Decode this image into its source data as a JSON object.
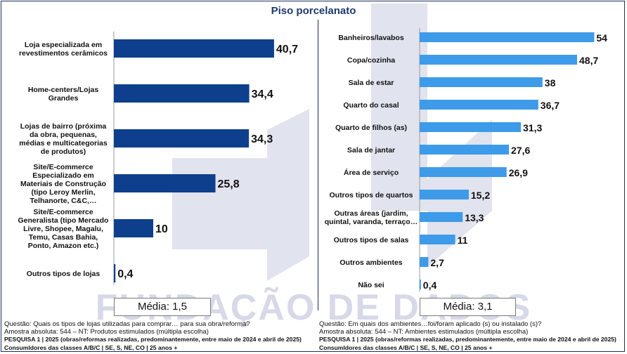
{
  "title": "Piso porcelanato",
  "watermark": "FUNDAÇÃO DE DADOS",
  "colors": {
    "left_bar": "#0d3f8c",
    "right_bar": "#3d9be9",
    "frame": "#1f2f5c",
    "title": "#1f3a6e",
    "watermark": "#d7d9e8"
  },
  "chart_data": [
    {
      "type": "bar",
      "orientation": "horizontal",
      "categories": [
        "Loja especializada em revestimentos cerâmicos",
        "Home-centers/Lojas Grandes",
        "Lojas de bairro (próxima da obra, pequenas, médias e multicategorias de produtos)",
        "Site/E-commerce Especializado em Materiais de Construção (tipo Leroy Merlin, Telhanorte, C&C,…",
        "Site/E-commerce Generalista (tipo Mercado Livre, Shopee, Magalu, Temu, Casas Bahia, Ponto, Amazon etc.)",
        "Outros tipos de lojas"
      ],
      "label_lines": [
        [
          "Loja especializada em",
          "revestimentos cerâmicos"
        ],
        [
          "Home-centers/Lojas",
          "Grandes"
        ],
        [
          "Lojas de bairro (próxima",
          "da obra, pequenas,",
          "médias e multicategorias",
          "de produtos)"
        ],
        [
          "Site/E-commerce",
          "Especializado em",
          "Materiais de Construção",
          "(tipo Leroy Merlin,",
          "Telhanorte, C&C,…"
        ],
        [
          "Site/E-commerce",
          "Generalista (tipo Mercado",
          "Livre, Shopee, Magalu,",
          "Temu, Casas Bahia,",
          "Ponto, Amazon etc.)"
        ],
        [
          "Outros tipos de lojas"
        ]
      ],
      "values": [
        40.7,
        34.4,
        34.3,
        25.8,
        10,
        0.4
      ],
      "value_labels": [
        "40,7",
        "34,4",
        "34,3",
        "25,8",
        "10",
        "0,4"
      ],
      "average_label": "Média:",
      "average_value": "1,5"
    },
    {
      "type": "bar",
      "orientation": "horizontal",
      "categories": [
        "Banheiros/lavabos",
        "Copa/cozinha",
        "Sala  de estar",
        "Quarto do casal",
        "Quarto de filhos (as)",
        "Sala de jantar",
        "Área de serviço",
        "Outros tipos de quartos",
        "Outras áreas (jardim, quintal, varanda, terraço…",
        "Outros tipos de salas",
        "Outros ambientes",
        "Não sei"
      ],
      "label_lines": [
        [
          "Banheiros/lavabos"
        ],
        [
          "Copa/cozinha"
        ],
        [
          "Sala  de estar"
        ],
        [
          "Quarto do casal"
        ],
        [
          "Quarto de filhos (as)"
        ],
        [
          "Sala de jantar"
        ],
        [
          "Área de serviço"
        ],
        [
          "Outros tipos de quartos"
        ],
        [
          "Outras áreas (jardim,",
          "quintal, varanda, terraço…"
        ],
        [
          "Outros tipos de salas"
        ],
        [
          "Outros ambientes"
        ],
        [
          "Não sei"
        ]
      ],
      "values": [
        54,
        48.7,
        38,
        36.7,
        31.3,
        27.6,
        26.9,
        15.2,
        13.3,
        11,
        2.7,
        0.4
      ],
      "value_labels": [
        "54",
        "48,7",
        "38",
        "36,7",
        "31,3",
        "27,6",
        "26,9",
        "15,2",
        "13,3",
        "11",
        "2,7",
        "0,4"
      ],
      "average_label": "Média:",
      "average_value": "3,1"
    }
  ],
  "footer_left": {
    "question": "Questão: Quais os tipos de lojas utilizadas para comprar… para sua obra/reforma?",
    "sample": "Amostra absoluta: 544 – NT: Produtos estimulados (múltipla escolha)",
    "survey": "PESQUISA 1 | 2025 (obras/reformas realizadas, predominantemente, entre maio de 2024 e abril de 2025)",
    "consumers": "Consumldores das classes A/B/C | SE, S, NE, CO | 25 anos +"
  },
  "footer_right": {
    "question": "Questão: Em quais dos ambientes…foi/foram aplicado (s) ou instalado (s)?",
    "sample": "Amostra absoluta: 544 – NT: Ambientes estimulados (múltipla escolha)",
    "survey": "PESQUISA 1 | 2025 (obras/reformas realizadas, predominantemente, entre maio de 2024 e abril de 2025)",
    "consumers": "Consumldores das classes A/B/C | SE, S, NE, CO | 25 anos +"
  }
}
